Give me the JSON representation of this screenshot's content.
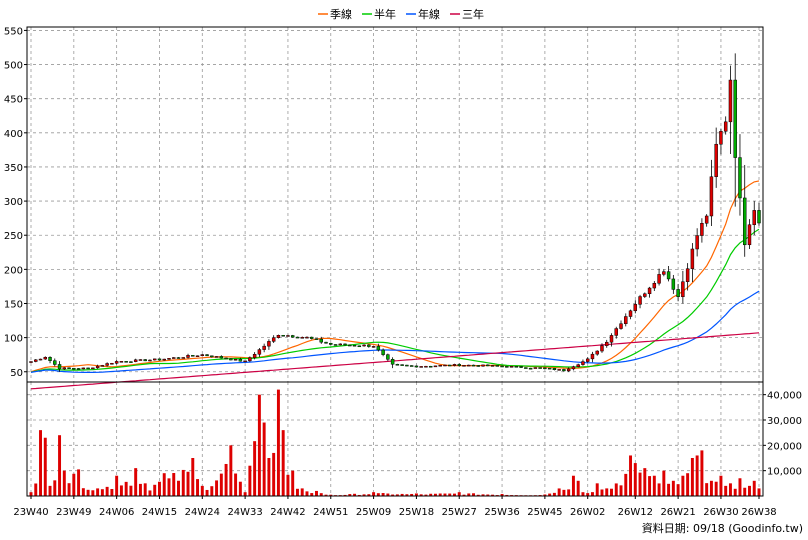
{
  "chart_data": {
    "type": "candlestick-with-volume",
    "legend": [
      {
        "name": "季線",
        "color": "#ff6600"
      },
      {
        "name": "半年",
        "color": "#00cc00"
      },
      {
        "name": "年線",
        "color": "#0055ff"
      },
      {
        "name": "三年",
        "color": "#cc0044"
      }
    ],
    "colors": {
      "up": "#dd0000",
      "down": "#00aa00",
      "outline": "#000000",
      "volume": "#dd0000",
      "grid": "#999999"
    },
    "price_axis": {
      "range": [
        35,
        555
      ],
      "ticks": [
        50,
        100,
        150,
        200,
        250,
        300,
        350,
        400,
        450,
        500,
        550
      ]
    },
    "volume_axis": {
      "range": [
        0,
        45000
      ],
      "ticks": [
        "10,000",
        "20,000",
        "30,000",
        "40,000"
      ],
      "tick_values": [
        10000,
        20000,
        30000,
        40000
      ]
    },
    "x_labels": [
      "23W40",
      "23W49",
      "24W06",
      "24W15",
      "24W24",
      "24W33",
      "24W42",
      "24W51",
      "25W09",
      "25W18",
      "25W27",
      "25W36",
      "25W45",
      "26W02",
      "26W12",
      "26W21",
      "26W30",
      "26W38"
    ],
    "x_label_index": [
      0,
      9,
      18,
      27,
      36,
      45,
      54,
      63,
      72,
      81,
      90,
      99,
      108,
      117,
      127,
      136,
      145,
      153
    ],
    "num_weeks": 154,
    "anchors_close": [
      [
        0,
        65
      ],
      [
        3,
        72
      ],
      [
        6,
        55
      ],
      [
        12,
        55
      ],
      [
        18,
        65
      ],
      [
        27,
        68
      ],
      [
        36,
        75
      ],
      [
        45,
        65
      ],
      [
        52,
        105
      ],
      [
        58,
        100
      ],
      [
        63,
        90
      ],
      [
        72,
        88
      ],
      [
        76,
        60
      ],
      [
        81,
        58
      ],
      [
        90,
        60
      ],
      [
        99,
        58
      ],
      [
        108,
        55
      ],
      [
        112,
        52
      ],
      [
        117,
        68
      ],
      [
        121,
        95
      ],
      [
        127,
        150
      ],
      [
        130,
        175
      ],
      [
        133,
        200
      ],
      [
        136,
        160
      ],
      [
        140,
        250
      ],
      [
        142,
        280
      ],
      [
        144,
        380
      ],
      [
        146,
        420
      ],
      [
        147,
        480
      ],
      [
        148,
        370
      ],
      [
        149,
        300
      ],
      [
        150,
        240
      ],
      [
        151,
        270
      ],
      [
        152,
        290
      ],
      [
        153,
        270
      ]
    ],
    "volume_anchors": [
      [
        0,
        1500
      ],
      [
        2,
        26000
      ],
      [
        3,
        23000
      ],
      [
        4,
        4000
      ],
      [
        6,
        24000
      ],
      [
        7,
        10000
      ],
      [
        10,
        10500
      ],
      [
        14,
        3000
      ],
      [
        18,
        8000
      ],
      [
        22,
        11000
      ],
      [
        24,
        5000
      ],
      [
        28,
        9000
      ],
      [
        34,
        15000
      ],
      [
        36,
        4000
      ],
      [
        42,
        20000
      ],
      [
        45,
        1500
      ],
      [
        48,
        40000
      ],
      [
        49,
        29000
      ],
      [
        50,
        15000
      ],
      [
        51,
        17000
      ],
      [
        52,
        42000
      ],
      [
        53,
        26000
      ],
      [
        55,
        10000
      ],
      [
        57,
        3000
      ],
      [
        60,
        2000
      ],
      [
        63,
        500
      ],
      [
        72,
        1500
      ],
      [
        81,
        1000
      ],
      [
        90,
        1500
      ],
      [
        99,
        800
      ],
      [
        108,
        600
      ],
      [
        114,
        8000
      ],
      [
        115,
        6000
      ],
      [
        116,
        1500
      ],
      [
        119,
        5000
      ],
      [
        121,
        3000
      ],
      [
        126,
        16000
      ],
      [
        127,
        13000
      ],
      [
        129,
        11000
      ],
      [
        131,
        8000
      ],
      [
        133,
        10000
      ],
      [
        135,
        6000
      ],
      [
        137,
        8000
      ],
      [
        138,
        9000
      ],
      [
        139,
        15000
      ],
      [
        140,
        16000
      ],
      [
        141,
        18000
      ],
      [
        143,
        6000
      ],
      [
        145,
        8000
      ],
      [
        147,
        5000
      ],
      [
        149,
        7000
      ],
      [
        151,
        4000
      ],
      [
        152,
        6000
      ],
      [
        153,
        3000
      ]
    ],
    "source_label": "資料日期: 09/18  (Goodinfo.tw)"
  }
}
